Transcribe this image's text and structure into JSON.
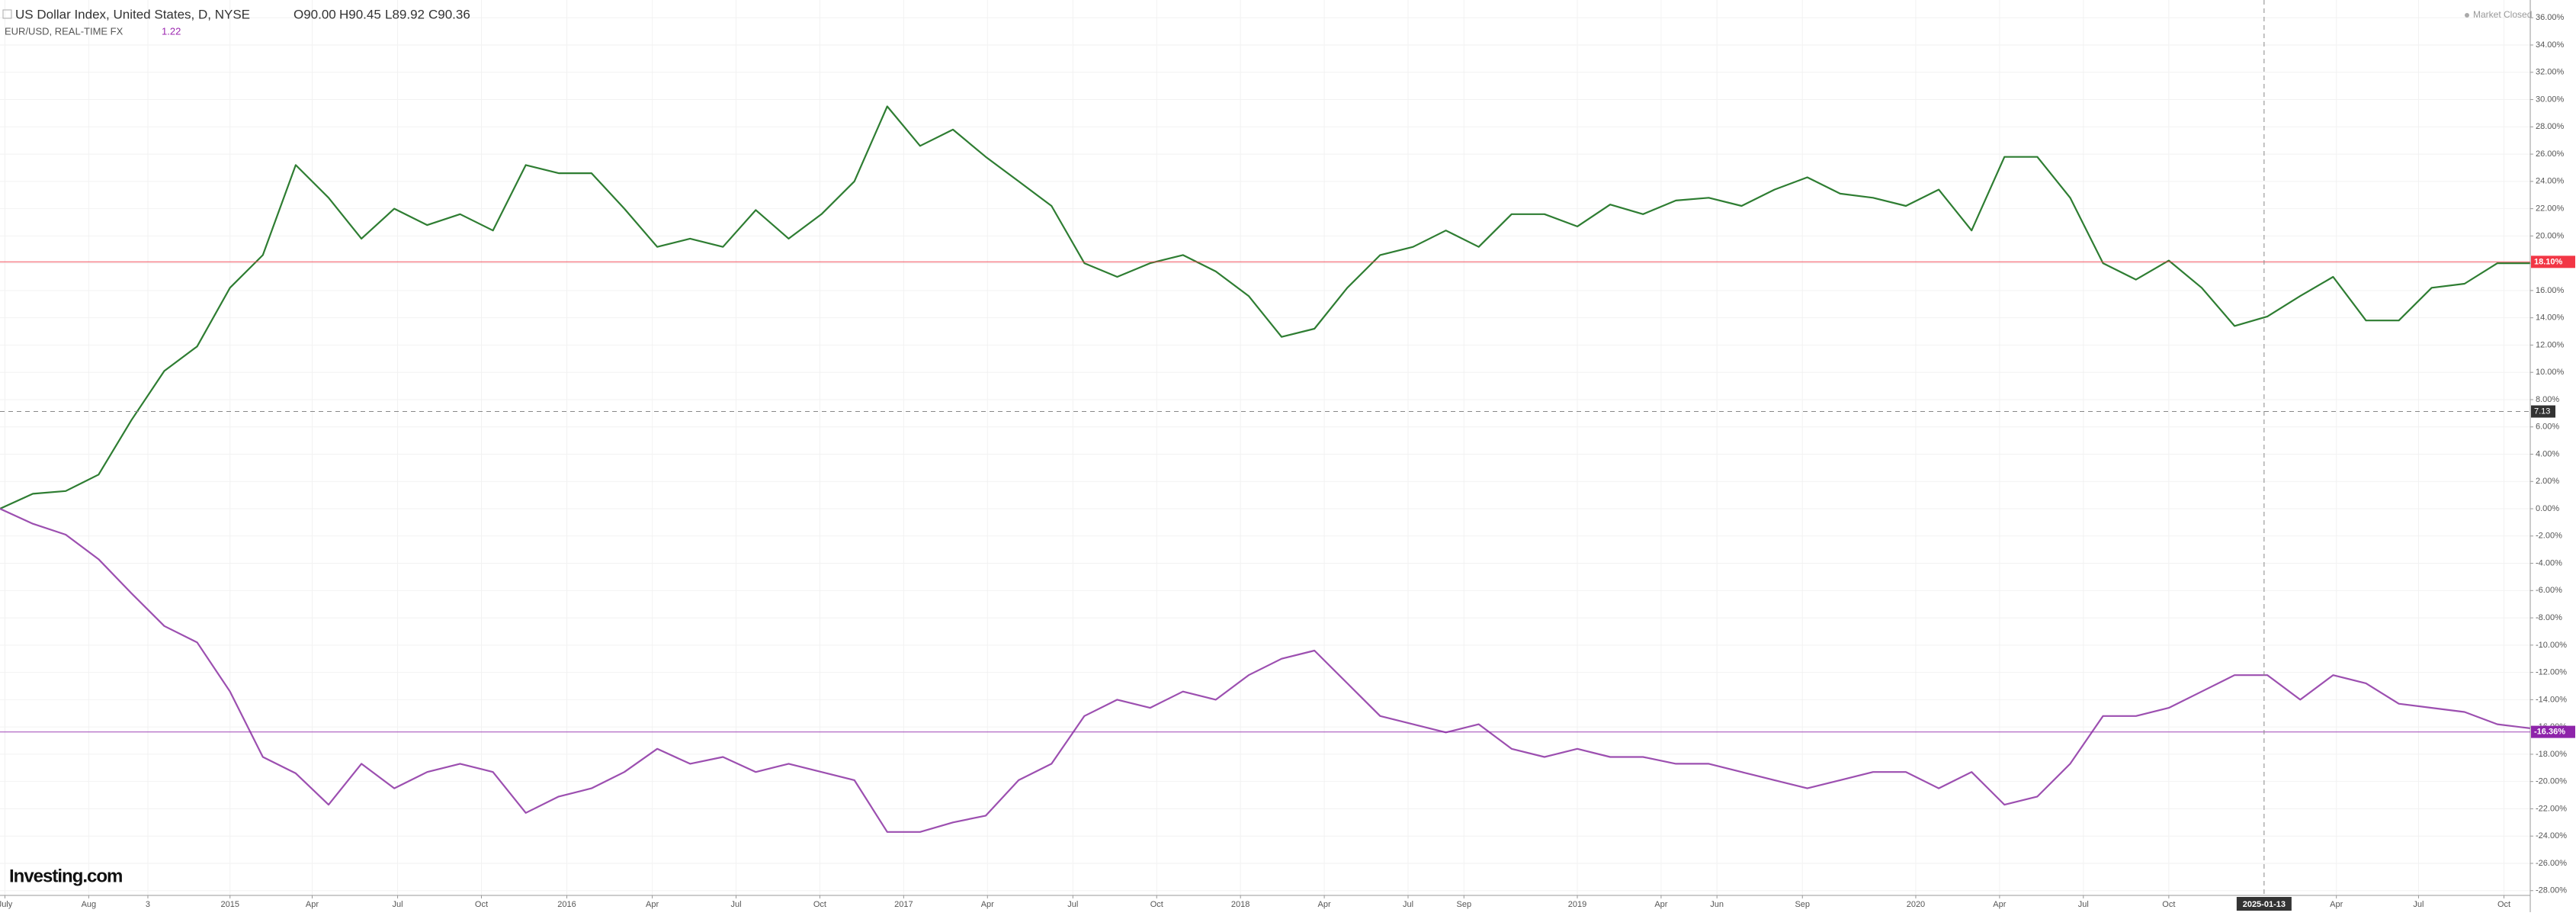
{
  "header": {
    "title": "US Dollar Index, United States, D, NYSE",
    "ohlc": [
      "O90.00",
      "H90.45",
      "L89.92",
      "C90.36"
    ],
    "compare": "EUR/USD, REAL-TIME FX",
    "compare_value": "1.22",
    "status": "Market Closed",
    "logo": "Investing.com"
  },
  "chart_data": {
    "type": "line",
    "grid": true,
    "x": [
      0,
      1,
      2,
      3,
      4,
      5,
      6,
      7,
      8,
      9,
      10,
      11,
      12,
      13,
      14,
      15,
      16,
      17,
      18,
      19,
      20,
      21,
      22,
      23,
      24,
      25,
      26,
      27,
      28,
      29,
      30,
      31,
      32,
      33,
      34,
      35,
      36,
      37,
      38,
      39,
      40,
      41,
      42,
      43,
      44,
      45,
      46,
      47,
      48,
      49,
      50,
      51,
      52,
      53,
      54,
      55,
      56,
      57,
      58,
      59,
      60,
      61,
      62,
      63,
      64,
      65,
      66,
      67,
      68,
      69,
      70,
      71,
      72,
      73,
      74,
      75,
      76,
      77
    ],
    "xlim": [
      0,
      77
    ],
    "ylim": [
      -28.35,
      37.3
    ],
    "series": [
      {
        "name": "US Dollar Index",
        "color": "#2e7d32",
        "values": [
          0,
          1.1,
          1.3,
          2.5,
          6.5,
          10.1,
          11.9,
          16.2,
          18.6,
          25.2,
          22.8,
          19.8,
          22,
          20.8,
          21.6,
          20.4,
          25.2,
          24.6,
          24.6,
          22,
          19.2,
          19.8,
          19.2,
          21.9,
          19.8,
          21.6,
          24,
          29.5,
          26.6,
          27.8,
          25.8,
          24,
          22.2,
          18,
          17,
          18,
          18.6,
          17.4,
          15.6,
          12.6,
          13.2,
          16.2,
          18.6,
          19.2,
          20.4,
          19.2,
          21.6,
          21.6,
          20.7,
          22.3,
          21.6,
          22.6,
          22.8,
          22.2,
          23.4,
          24.3,
          23.1,
          22.8,
          22.2,
          23.4,
          20.4,
          25.8,
          25.8,
          22.8,
          18,
          16.8,
          18.2,
          16.2,
          13.4,
          14.1,
          15.6,
          17,
          13.8,
          13.8,
          16.2,
          16.5,
          18,
          18
        ]
      },
      {
        "name": "EUR/USD",
        "color": "#9c4fb0",
        "values": [
          0,
          -1.1,
          -1.9,
          -3.7,
          -6.2,
          -8.6,
          -9.8,
          -13.4,
          -18.2,
          -19.4,
          -21.7,
          -18.7,
          -20.5,
          -19.3,
          -18.7,
          -19.3,
          -22.3,
          -21.1,
          -20.5,
          -19.3,
          -17.6,
          -18.7,
          -18.2,
          -19.3,
          -18.7,
          -19.3,
          -19.9,
          -23.7,
          -23.7,
          -23,
          -22.5,
          -19.9,
          -18.7,
          -15.2,
          -14,
          -14.6,
          -13.4,
          -14,
          -12.2,
          -11,
          -10.4,
          -12.8,
          -15.2,
          -15.8,
          -16.4,
          -15.8,
          -17.6,
          -18.2,
          -17.6,
          -18.2,
          -18.2,
          -18.7,
          -18.7,
          -19.3,
          -19.9,
          -20.5,
          -19.9,
          -19.3,
          -19.3,
          -20.5,
          -19.3,
          -21.7,
          -21.1,
          -18.7,
          -15.2,
          -15.2,
          -14.6,
          -13.4,
          -12.2,
          -12.2,
          -14,
          -12.2,
          -12.8,
          -14.3,
          -14.6,
          -14.9,
          -15.8,
          -16.1
        ]
      }
    ],
    "price_lines": [
      {
        "value": 18.1,
        "label": "18.10%",
        "color": "#f23645"
      },
      {
        "value": -16.36,
        "label": "-16.36%",
        "color": "#8e24aa"
      }
    ],
    "crosshair": {
      "y": {
        "value": 7.13,
        "label": "7.13"
      },
      "x": {
        "value": 68.9,
        "label": "2025-01-13"
      }
    },
    "xticks": [
      {
        "value": 0.15,
        "label": "July"
      },
      {
        "value": 2.7,
        "label": "Aug"
      },
      {
        "value": 4.5,
        "label": "3"
      },
      {
        "value": 7,
        "label": "2015"
      },
      {
        "value": 9.5,
        "label": "Apr"
      },
      {
        "value": 12.1,
        "label": "Jul"
      },
      {
        "value": 14.65,
        "label": "Oct"
      },
      {
        "value": 17.25,
        "label": "2016"
      },
      {
        "value": 19.85,
        "label": "Apr"
      },
      {
        "value": 22.4,
        "label": "Jul"
      },
      {
        "value": 24.95,
        "label": "Oct"
      },
      {
        "value": 27.5,
        "label": "2017"
      },
      {
        "value": 30.05,
        "label": "Apr"
      },
      {
        "value": 32.65,
        "label": "Jul"
      },
      {
        "value": 35.2,
        "label": "Oct"
      },
      {
        "value": 37.75,
        "label": "2018"
      },
      {
        "value": 40.3,
        "label": "Apr"
      },
      {
        "value": 42.85,
        "label": "Jul"
      },
      {
        "value": 44.55,
        "label": "Sep"
      },
      {
        "value": 48,
        "label": "2019"
      },
      {
        "value": 50.55,
        "label": "Apr"
      },
      {
        "value": 52.25,
        "label": "Jun"
      },
      {
        "value": 54.85,
        "label": "Sep"
      },
      {
        "value": 58.3,
        "label": "2020"
      },
      {
        "value": 60.85,
        "label": "Apr"
      },
      {
        "value": 63.4,
        "label": "Jul"
      },
      {
        "value": 66,
        "label": "Oct"
      },
      {
        "value": 71.1,
        "label": "Apr"
      },
      {
        "value": 73.6,
        "label": "Jul"
      },
      {
        "value": 76.2,
        "label": "Oct"
      }
    ],
    "yticks": [
      {
        "value": 36,
        "label": "36.00%"
      },
      {
        "value": 34,
        "label": "34.00%"
      },
      {
        "value": 32,
        "label": "32.00%"
      },
      {
        "value": 30,
        "label": "30.00%"
      },
      {
        "value": 28,
        "label": "28.00%"
      },
      {
        "value": 26,
        "label": "26.00%"
      },
      {
        "value": 24,
        "label": "24.00%"
      },
      {
        "value": 22,
        "label": "22.00%"
      },
      {
        "value": 20,
        "label": "20.00%"
      },
      {
        "value": 18,
        "label": "18.00%"
      },
      {
        "value": 16,
        "label": "16.00%"
      },
      {
        "value": 14,
        "label": "14.00%"
      },
      {
        "value": 12,
        "label": "12.00%"
      },
      {
        "value": 10,
        "label": "10.00%"
      },
      {
        "value": 8,
        "label": "8.00%"
      },
      {
        "value": 6,
        "label": "6.00%"
      },
      {
        "value": 4,
        "label": "4.00%"
      },
      {
        "value": 2,
        "label": "2.00%"
      },
      {
        "value": 0,
        "label": "0.00%"
      },
      {
        "value": -2,
        "label": "-2.00%"
      },
      {
        "value": -4,
        "label": "-4.00%"
      },
      {
        "value": -6,
        "label": "-6.00%"
      },
      {
        "value": -8,
        "label": "-8.00%"
      },
      {
        "value": -10,
        "label": "-10.00%"
      },
      {
        "value": -12,
        "label": "-12.00%"
      },
      {
        "value": -14,
        "label": "-14.00%"
      },
      {
        "value": -16,
        "label": "-16.00%"
      },
      {
        "value": -18,
        "label": "-18.00%"
      },
      {
        "value": -20,
        "label": "-20.00%"
      },
      {
        "value": -22,
        "label": "-22.00%"
      },
      {
        "value": -24,
        "label": "-24.00%"
      },
      {
        "value": -26,
        "label": "-26.00%"
      },
      {
        "value": -28,
        "label": "-28.00%"
      }
    ]
  }
}
